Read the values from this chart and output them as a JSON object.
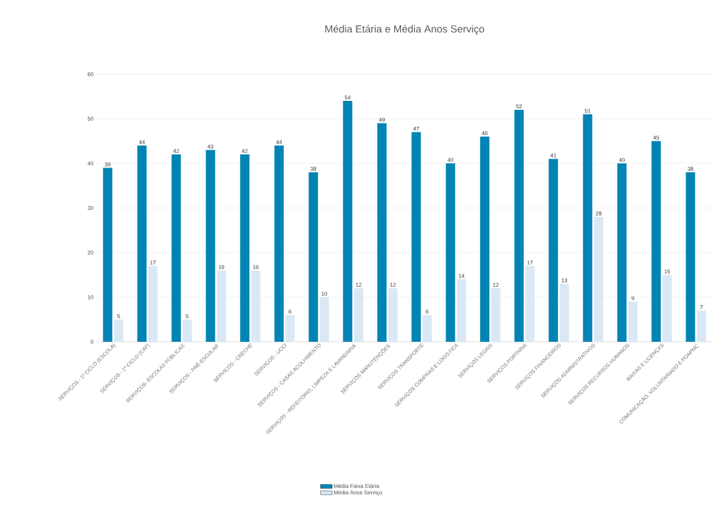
{
  "chart_data": {
    "type": "bar",
    "title": "Média Etária e Média Anos Serviço",
    "categories": [
      "SERVIÇOS - 1º CICLO (ESCOLA)",
      "SERVIÇOS - 1º CICLO (CAF)",
      "SERVIÇOS- ESCOLAS PÚBLICAS",
      "SERVIÇOS - PRÉ-ESCOLAR",
      "SERVIÇOS - CRECHE",
      "SERVIÇOS - UCCI",
      "SERVIÇOS - CASAS ACOLHIMENTO",
      "SERVIÇOS - REFEITÓRIO, LIMPEZA E LAVANDARIA",
      "SERVIÇOS MANUTENÇÕES",
      "SERVIÇOS TRANSPORTE",
      "SERVIÇOS COMPRAS E LOGISTICA",
      "SERVIÇOS LEGAIS",
      "SERVIÇOS PORTARIA",
      "SERVIÇOS FINANCEIROS",
      "SERVIÇOS ADMINISTRATIVOS",
      "SERVIÇOS RECURSOS HUMANOS",
      "BAIXAS E LICENÇAS",
      "COMUNICAÇÃO, VOLUNTARIADO E POAPMC"
    ],
    "series": [
      {
        "name": "Média Faixa Etária",
        "color": "#0084b4",
        "values": [
          39,
          44,
          42,
          43,
          42,
          44,
          38,
          54,
          49,
          47,
          40,
          46,
          52,
          41,
          51,
          40,
          45,
          38
        ]
      },
      {
        "name": "Média Anos Serviço",
        "color": "#dae8f6",
        "values": [
          5,
          17,
          5,
          16,
          16,
          6,
          10,
          12,
          12,
          6,
          14,
          12,
          17,
          13,
          28,
          9,
          15,
          7
        ]
      }
    ],
    "ylim": [
      0,
      60
    ],
    "yticks": [
      0,
      10,
      20,
      30,
      40,
      50,
      60
    ],
    "grid": "y",
    "legend": "bottom",
    "data_labels": true
  }
}
